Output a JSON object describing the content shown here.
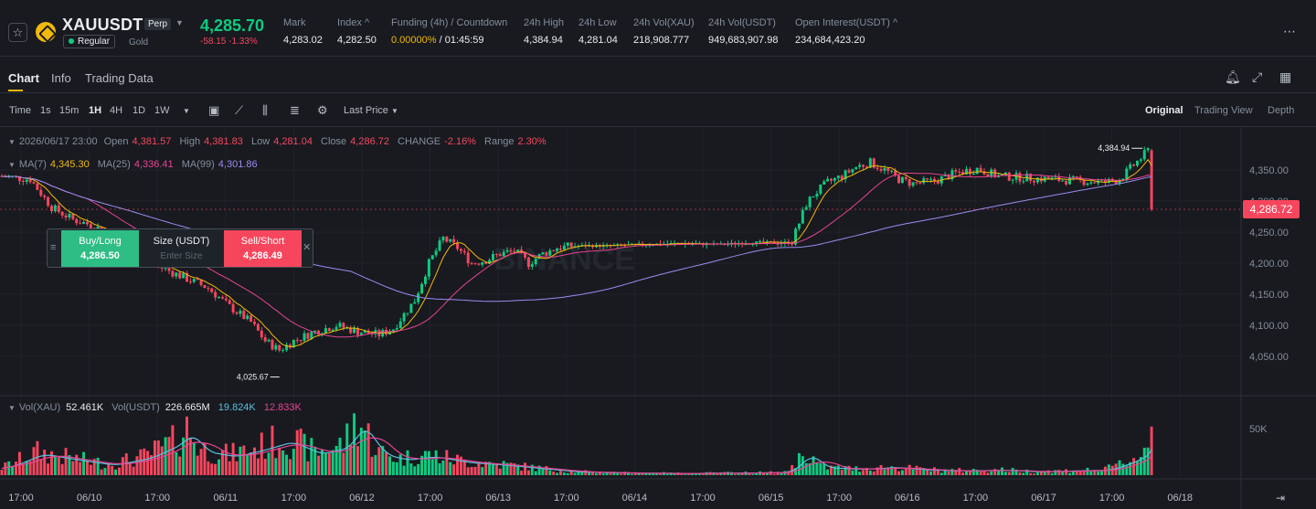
{
  "ticker": {
    "symbol": "XAUUSDT",
    "contract_type": "Perp",
    "tag": "Regular",
    "asset_name": "Gold",
    "last_price": "4,285.70",
    "change": "-58.15 -1.33%",
    "stats": [
      {
        "label": "Mark",
        "value": "4,283.02"
      },
      {
        "label": "Index ^",
        "value": "4,282.50"
      },
      {
        "label": "Funding (4h) / Countdown",
        "value_rate": "0.00000%",
        "value_countdown": " / 01:45:59"
      },
      {
        "label": "24h High",
        "value": "4,384.94"
      },
      {
        "label": "24h Low",
        "value": "4,281.04"
      },
      {
        "label": "24h Vol(XAU)",
        "value": "218,908.777"
      },
      {
        "label": "24h Vol(USDT)",
        "value": "949,683,907.98"
      },
      {
        "label": "Open Interest(USDT) ^",
        "value": "234,684,423.20"
      }
    ]
  },
  "tabs": [
    "Chart",
    "Info",
    "Trading Data"
  ],
  "toolbar": {
    "intervals": [
      "Time",
      "1s",
      "15m",
      "1H",
      "4H",
      "1D",
      "1W"
    ],
    "active_interval": "1H",
    "price_source": "Last Price",
    "views": [
      "Original",
      "Trading View",
      "Depth"
    ],
    "active_view": "Original"
  },
  "legend": {
    "date": "2026/06/17 23:00",
    "open_label": "Open",
    "open": "4,381.57",
    "high_label": "High",
    "high": "4,381.83",
    "low_label": "Low",
    "low": "4,281.04",
    "close_label": "Close",
    "close": "4,286.72",
    "change_label": "CHANGE",
    "change": "-2.16%",
    "range_label": "Range",
    "range": "2.30%",
    "ma7_label": "MA(7)",
    "ma7": "4,345.30",
    "ma25_label": "MA(25)",
    "ma25": "4,336.41",
    "ma99_label": "MA(99)",
    "ma99": "4,301.86",
    "vol_xau_label": "Vol(XAU)",
    "vol_xau": "52.461K",
    "vol_usdt_label": "Vol(USDT)",
    "vol_usdt": "226.665M",
    "vol_ma1": "19.824K",
    "vol_ma2": "12.833K"
  },
  "order_widget": {
    "buy_label": "Buy/Long",
    "buy_price": "4,286.50",
    "size_label": "Size (USDT)",
    "size_placeholder": "Enter Size",
    "sell_label": "Sell/Short",
    "sell_price": "4,286.49"
  },
  "colors": {
    "up": "#0ecb81",
    "down": "#f6465d",
    "ma7": "#f0b90b",
    "ma25": "#e84393",
    "ma99": "#9b8cf0",
    "accent": "#f0b90b"
  },
  "chart_data": {
    "type": "candlestick",
    "price_ticks": [
      4350,
      4300,
      4250,
      4200,
      4150,
      4100,
      4050
    ],
    "price_tick_labels": [
      "4,350.00",
      "4,300.00",
      "4,250.00",
      "4,200.00",
      "4,150.00",
      "4,100.00",
      "4,050.00"
    ],
    "volume_tick_label": "50K",
    "volume_tick_value": 50000,
    "current_price_label": "4,286.72",
    "current_price": 4286.72,
    "high_marker": "4,384.94",
    "high_marker_value": 4384.94,
    "low_marker": "4,025.67",
    "low_marker_value": 4025.67,
    "x_tick_labels": [
      "17:00",
      "06/10",
      "17:00",
      "06/11",
      "17:00",
      "06/12",
      "17:00",
      "06/13",
      "17:00",
      "06/14",
      "17:00",
      "06/15",
      "17:00",
      "06/16",
      "17:00",
      "06/17",
      "17:00",
      "06/18"
    ],
    "candle_interval": "1H",
    "price_path": [
      [
        0,
        4340
      ],
      [
        8,
        4335
      ],
      [
        14,
        4290
      ],
      [
        20,
        4270
      ],
      [
        26,
        4260
      ],
      [
        32,
        4240
      ],
      [
        36,
        4225
      ],
      [
        42,
        4200
      ],
      [
        50,
        4180
      ],
      [
        58,
        4160
      ],
      [
        64,
        4130
      ],
      [
        70,
        4105
      ],
      [
        74,
        4075
      ],
      [
        78,
        4060
      ],
      [
        82,
        4075
      ],
      [
        88,
        4090
      ],
      [
        94,
        4100
      ],
      [
        100,
        4090
      ],
      [
        106,
        4085
      ],
      [
        110,
        4095
      ],
      [
        116,
        4140
      ],
      [
        120,
        4200
      ],
      [
        124,
        4240
      ],
      [
        128,
        4225
      ],
      [
        132,
        4200
      ],
      [
        136,
        4205
      ],
      [
        140,
        4215
      ],
      [
        144,
        4220
      ],
      [
        148,
        4200
      ],
      [
        152,
        4215
      ],
      [
        156,
        4225
      ],
      [
        162,
        4228
      ],
      [
        170,
        4228
      ],
      [
        180,
        4230
      ],
      [
        190,
        4232
      ],
      [
        200,
        4230
      ],
      [
        208,
        4232
      ],
      [
        214,
        4234
      ],
      [
        218,
        4232
      ],
      [
        222,
        4235
      ],
      [
        226,
        4295
      ],
      [
        228,
        4310
      ],
      [
        232,
        4330
      ],
      [
        236,
        4340
      ],
      [
        240,
        4355
      ],
      [
        244,
        4362
      ],
      [
        248,
        4350
      ],
      [
        252,
        4335
      ],
      [
        256,
        4328
      ],
      [
        262,
        4332
      ],
      [
        268,
        4345
      ],
      [
        274,
        4352
      ],
      [
        280,
        4340
      ],
      [
        286,
        4338
      ],
      [
        292,
        4336
      ],
      [
        298,
        4334
      ],
      [
        304,
        4332
      ],
      [
        310,
        4330
      ],
      [
        314,
        4335
      ],
      [
        318,
        4358
      ],
      [
        321,
        4375
      ],
      [
        322,
        4381
      ],
      [
        323,
        4286
      ]
    ],
    "volume_path": [
      [
        0,
        8000
      ],
      [
        10,
        25000
      ],
      [
        20,
        18000
      ],
      [
        30,
        12000
      ],
      [
        40,
        20000
      ],
      [
        48,
        35000
      ],
      [
        52,
        50000
      ],
      [
        56,
        28000
      ],
      [
        64,
        22000
      ],
      [
        72,
        30000
      ],
      [
        80,
        40000
      ],
      [
        88,
        25000
      ],
      [
        96,
        33000
      ],
      [
        100,
        60000
      ],
      [
        106,
        25000
      ],
      [
        112,
        18000
      ],
      [
        120,
        22000
      ],
      [
        130,
        15000
      ],
      [
        140,
        12000
      ],
      [
        150,
        8000
      ],
      [
        160,
        4000
      ],
      [
        175,
        2500
      ],
      [
        190,
        2000
      ],
      [
        205,
        2500
      ],
      [
        220,
        3000
      ],
      [
        226,
        25000
      ],
      [
        230,
        9000
      ],
      [
        240,
        7000
      ],
      [
        250,
        9000
      ],
      [
        260,
        6000
      ],
      [
        270,
        5000
      ],
      [
        280,
        6000
      ],
      [
        290,
        4000
      ],
      [
        300,
        5000
      ],
      [
        310,
        6000
      ],
      [
        318,
        18000
      ],
      [
        322,
        30000
      ],
      [
        323,
        52461
      ]
    ],
    "ylim": [
      4000,
      4400
    ]
  }
}
